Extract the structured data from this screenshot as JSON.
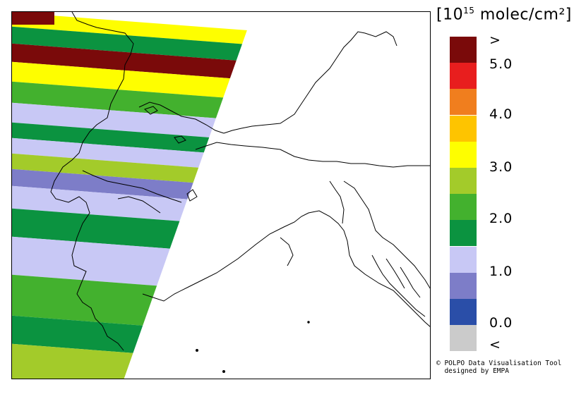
{
  "legend": {
    "unit_prefix": "10",
    "unit_exponent": "15",
    "unit_suffix": "molec/cm²",
    "levels": [
      {
        "color": "#7a0a0a"
      },
      {
        "color": "#e81e1e"
      },
      {
        "color": "#f07e1e"
      },
      {
        "color": "#fec400"
      },
      {
        "color": "#fefe00"
      },
      {
        "color": "#a3cb2a"
      },
      {
        "color": "#43b12e"
      },
      {
        "color": "#0b9340"
      },
      {
        "color": "#c8c8f5"
      },
      {
        "color": "#7d7dc8"
      },
      {
        "color": "#2a4ea8"
      },
      {
        "color": "#cbcbcb"
      }
    ],
    "labels": [
      ">",
      "5.0",
      "4.0",
      "3.0",
      "2.0",
      "1.0",
      "0.0",
      "<"
    ]
  },
  "credit": {
    "line1": "© POLPO Data Visualisation Tool",
    "line2": "designed by EMPA"
  },
  "map": {
    "background": "#ffffff",
    "swath_bands": [
      {
        "color": "#fefe00"
      },
      {
        "color": "#0b9340"
      },
      {
        "color": "#7a0a0a"
      },
      {
        "color": "#fefe00"
      },
      {
        "color": "#43b12e"
      },
      {
        "color": "#c8c8f5"
      },
      {
        "color": "#0b9340"
      },
      {
        "color": "#c8c8f5"
      },
      {
        "color": "#a3cb2a"
      },
      {
        "color": "#7d7dc8"
      },
      {
        "color": "#c8c8f5"
      },
      {
        "color": "#0b9340"
      },
      {
        "color": "#c8c8f5"
      },
      {
        "color": "#43b12e"
      },
      {
        "color": "#0b9340"
      },
      {
        "color": "#a3cb2a"
      }
    ]
  }
}
